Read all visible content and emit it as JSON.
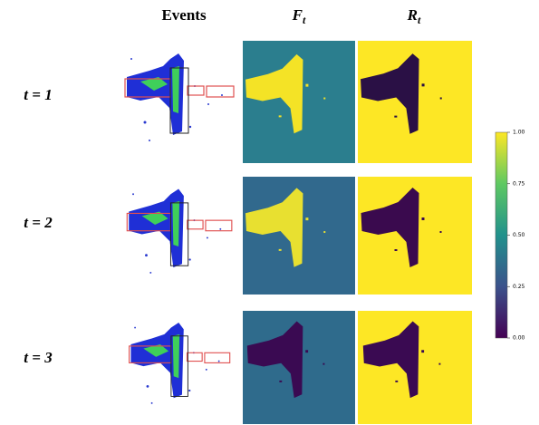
{
  "columns": [
    "Events",
    {
      "base": "F",
      "sub": "t"
    },
    {
      "base": "R",
      "sub": "t"
    }
  ],
  "rows": [
    "t = 1",
    "t = 2",
    "t = 3"
  ],
  "colorbar": {
    "lim": [
      0,
      1
    ],
    "ticks": [
      {
        "value": 0,
        "label": "0.00"
      },
      {
        "value": 0.25,
        "label": "0.25"
      },
      {
        "value": 0.5,
        "label": "0.50"
      },
      {
        "value": 0.75,
        "label": "0.75"
      },
      {
        "value": 1,
        "label": "1.00"
      }
    ]
  }
}
